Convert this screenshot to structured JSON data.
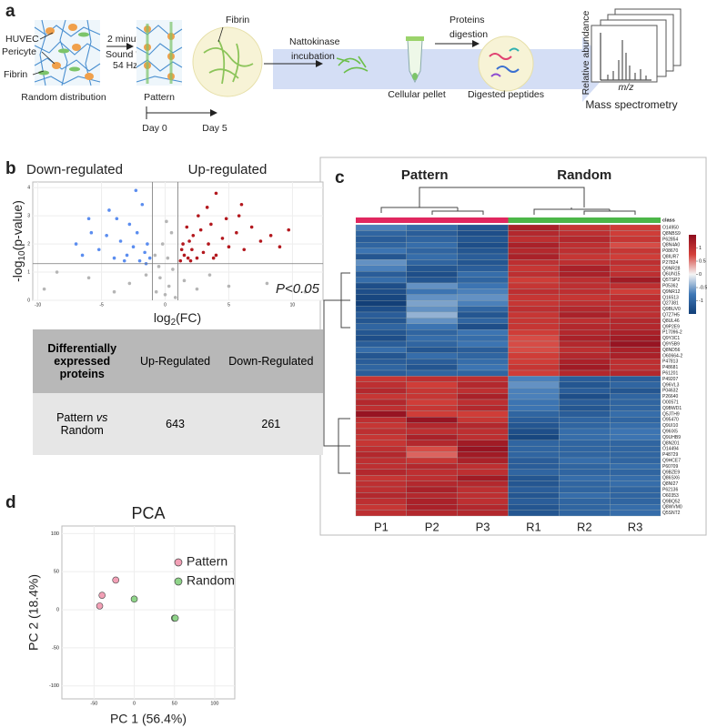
{
  "figure": {
    "panel_a": {
      "letter": "a",
      "huvec": "HUVEC",
      "pericyte": "Pericyte",
      "fibrin": "Fibrin",
      "random_distribution": "Random distribution",
      "duration": "2 minutes",
      "sound": "Sound 'on'",
      "frequency": "54 Hz",
      "pattern": "Pattern",
      "day_0": "Day 0",
      "day_5": "Day 5",
      "fibrin_2": "Fibrin",
      "nattokinase": "Nattokinase",
      "incubation": "incubation",
      "proteins": "Proteins",
      "digestion": "digestion",
      "cellular_pellet": "Cellular pellet",
      "digested_peptides": "Digested peptides",
      "relative_abundance": "Relative abundance",
      "mz": "m/z",
      "mass_spectrometry": "Mass spectrometry"
    },
    "panel_b": {
      "letter": "b"
    },
    "panel_c": {
      "letter": "c"
    },
    "panel_d": {
      "letter": "d"
    },
    "table": {
      "header": [
        "Differentially expressed proteins",
        "Up-Regulated",
        "Down-Regulated"
      ],
      "row": {
        "label_start": "Pattern",
        "label_em": "vs",
        "label_end": "Random",
        "values": [
          "643",
          "261"
        ]
      }
    }
  },
  "chart_data": [
    {
      "type": "scatter",
      "annotations": {
        "down": "Down-regulated",
        "up": "Up-regulated",
        "significance": "P<0.05"
      },
      "x_label": {
        "text": "log",
        "sub": "2",
        "tail": "(FC)"
      },
      "y_label": {
        "text": "-log",
        "sub": "10",
        "tail": "(p-value)"
      },
      "xlim": [
        -10.4,
        12.4
      ],
      "ylim": [
        0,
        4.2
      ],
      "xticks": [
        -10,
        -5,
        0,
        5,
        10
      ],
      "yticks": [
        0,
        1,
        2,
        3,
        4
      ],
      "grid": true,
      "reference_lines": {
        "x": [
          -1,
          1
        ],
        "y": [
          1.3
        ]
      },
      "series": [
        {
          "color": "#b5b5b5",
          "x": [
            0,
            0.3,
            -0.4,
            0.6,
            -0.7,
            0.2,
            -0.2,
            0.5,
            -0.5,
            1.5,
            -1.5,
            2.5,
            -2.8,
            3.5,
            -4,
            5,
            -6,
            -8.5,
            8,
            0.1,
            -0.8,
            0.8,
            -9.5,
            11
          ],
          "values": [
            0.2,
            0.5,
            0.8,
            1.1,
            0.3,
            1.5,
            2.0,
            2.4,
            1.2,
            0.7,
            0.9,
            0.4,
            0.6,
            0.9,
            0.3,
            0.5,
            0.8,
            1.0,
            0.6,
            2.8,
            1.6,
            0.1,
            0.4,
            0.3
          ]
        },
        {
          "color": "#5b8def",
          "x": [
            -1.2,
            -1.6,
            -2.0,
            -1.4,
            -2.5,
            -3.0,
            -2.2,
            -3.5,
            -4.0,
            -2.8,
            -4.6,
            -3.8,
            -5.2,
            -5.8,
            -6.5,
            -4.4,
            -7.0,
            -1.8,
            -2.3,
            -6.0,
            -1.5,
            -3.2
          ],
          "values": [
            1.5,
            1.7,
            1.4,
            2.0,
            1.9,
            1.6,
            2.4,
            2.1,
            1.5,
            2.7,
            2.3,
            2.9,
            1.8,
            2.4,
            1.6,
            3.2,
            2.0,
            3.4,
            3.9,
            2.9,
            1.3,
            1.4
          ]
        },
        {
          "color": "#b3181e",
          "x": [
            1.2,
            1.5,
            1.8,
            2.1,
            1.4,
            2.5,
            3.0,
            2.2,
            1.7,
            3.4,
            2.8,
            4.0,
            3.6,
            4.5,
            2.6,
            5.0,
            4.8,
            5.6,
            6.2,
            3.3,
            6.8,
            7.5,
            8.3,
            9.0,
            5.8,
            4.0,
            9.7,
            6.0,
            1.3,
            2.0,
            3.8,
            1.9
          ],
          "values": [
            1.4,
            1.6,
            1.5,
            1.8,
            2.0,
            1.5,
            1.7,
            2.3,
            2.6,
            2.0,
            2.5,
            1.6,
            2.7,
            2.2,
            3.0,
            1.9,
            2.9,
            2.4,
            1.8,
            3.3,
            2.6,
            2.1,
            2.3,
            1.9,
            3.0,
            3.8,
            2.5,
            3.4,
            1.8,
            1.4,
            1.5,
            2.1
          ]
        }
      ]
    },
    {
      "type": "heatmap",
      "groups": [
        {
          "name": "Pattern",
          "color": "#e0275f",
          "columns": [
            "P1",
            "P2",
            "P3"
          ]
        },
        {
          "name": "Random",
          "color": "#4cb648",
          "columns": [
            "R1",
            "R2",
            "R3"
          ]
        }
      ],
      "class_label": "class",
      "color_range": [
        -1.5,
        1.5
      ],
      "colors": [
        "#123f78",
        "#3f78b6",
        "#f5f5f5",
        "#d4403a",
        "#8e0d1e"
      ],
      "colorbar_ticks": [
        1,
        0.5,
        0,
        -0.5,
        -1
      ],
      "rows": [
        "O14950",
        "Q8NBS9",
        "P62854",
        "Q8N4A0",
        "P08670",
        "Q8IUR7",
        "P27824",
        "Q9NR28",
        "Q6UN15",
        "Q5TSP2",
        "P05362",
        "Q9NR12",
        "Q16513",
        "Q27381",
        "Q9BUV0",
        "Q7Z7H5",
        "Q8UL46",
        "Q9P2E9",
        "P17096-2",
        "Q9Y3C1",
        "Q9Y5B9",
        "Q8ND56",
        "O60664-2",
        "P47813",
        "P48681",
        "P61201",
        "P49207",
        "Q96VL3",
        "P04632",
        "P26640",
        "O00571",
        "Q9BWD1",
        "Q5JTH9",
        "O95470",
        "Q9UI10",
        "Q96IX5",
        "Q9UHB9",
        "Q8N201",
        "O14494",
        "P48729",
        "Q9HCE7",
        "P60709",
        "Q9BZE9",
        "Q86SX6",
        "Q8NI27",
        "P62136",
        "O60353",
        "Q9BQ52",
        "Q8WVM0",
        "Q5SNT2"
      ],
      "values": [
        [
          -0.7,
          -0.9,
          -1.2,
          1.2,
          0.9,
          0.8
        ],
        [
          -1.0,
          -1.1,
          -1.3,
          1.1,
          1.0,
          0.8
        ],
        [
          -1.1,
          -1.0,
          -1.2,
          1.0,
          1.1,
          0.9
        ],
        [
          -1.0,
          -0.9,
          -1.3,
          1.2,
          1.0,
          0.7
        ],
        [
          -0.8,
          -1.0,
          -1.2,
          1.1,
          1.0,
          0.9
        ],
        [
          -1.2,
          -0.9,
          -1.1,
          1.2,
          0.9,
          0.8
        ],
        [
          -0.6,
          -1.0,
          -1.2,
          1.0,
          1.0,
          1.0
        ],
        [
          -0.7,
          -1.2,
          -1.1,
          0.9,
          1.2,
          0.9
        ],
        [
          -1.1,
          -1.3,
          -0.9,
          1.0,
          1.2,
          1.0
        ],
        [
          -0.9,
          -1.2,
          -1.0,
          0.8,
          1.0,
          1.3
        ],
        [
          -1.3,
          -0.6,
          -0.8,
          0.9,
          1.0,
          1.0
        ],
        [
          -1.3,
          -0.8,
          -0.7,
          1.0,
          1.0,
          0.8
        ],
        [
          -1.4,
          -0.6,
          -0.6,
          0.9,
          0.9,
          1.0
        ],
        [
          -1.5,
          -0.5,
          -0.7,
          0.9,
          1.0,
          1.0
        ],
        [
          -1.3,
          -0.6,
          -1.0,
          1.0,
          1.1,
          1.0
        ],
        [
          -1.1,
          -0.4,
          -1.2,
          0.9,
          1.2,
          1.0
        ],
        [
          -1.2,
          -0.6,
          -1.0,
          0.9,
          1.0,
          1.1
        ],
        [
          -1.0,
          -0.8,
          -1.3,
          0.9,
          1.1,
          1.1
        ],
        [
          -1.2,
          -1.0,
          -0.8,
          0.8,
          1.1,
          1.2
        ],
        [
          -1.3,
          -0.9,
          -0.9,
          0.7,
          1.2,
          1.3
        ],
        [
          -1.1,
          -1.0,
          -0.8,
          0.7,
          1.1,
          1.4
        ],
        [
          -0.9,
          -1.2,
          -1.1,
          0.7,
          1.0,
          1.2
        ],
        [
          -1.2,
          -0.9,
          -1.0,
          0.8,
          1.1,
          1.2
        ],
        [
          -1.1,
          -1.1,
          -0.9,
          0.8,
          1.2,
          1.0
        ],
        [
          -1.0,
          -1.2,
          -0.8,
          0.9,
          1.3,
          1.0
        ],
        [
          -1.1,
          -1.0,
          -1.0,
          0.8,
          1.1,
          1.1
        ],
        [
          0.9,
          1.0,
          1.0,
          -0.7,
          -1.1,
          -1.1
        ],
        [
          1.0,
          0.8,
          1.1,
          -0.6,
          -1.2,
          -1.0
        ],
        [
          1.1,
          0.9,
          1.0,
          -0.7,
          -1.1,
          -1.2
        ],
        [
          0.9,
          0.9,
          1.2,
          -0.7,
          -1.3,
          -1.0
        ],
        [
          1.1,
          0.8,
          1.0,
          -0.8,
          -1.1,
          -1.0
        ],
        [
          1.0,
          0.9,
          1.1,
          -0.8,
          -1.2,
          -1.0
        ],
        [
          1.4,
          0.8,
          0.8,
          -1.0,
          -1.1,
          -0.9
        ],
        [
          1.0,
          1.4,
          0.9,
          -1.1,
          -1.0,
          -1.0
        ],
        [
          0.9,
          1.1,
          1.1,
          -1.2,
          -1.0,
          -0.9
        ],
        [
          1.0,
          1.0,
          1.0,
          -1.3,
          -0.9,
          -0.8
        ],
        [
          0.9,
          1.2,
          1.0,
          -1.4,
          -0.9,
          -0.8
        ],
        [
          0.9,
          1.1,
          1.3,
          -1.0,
          -1.0,
          -1.0
        ],
        [
          1.0,
          0.7,
          1.4,
          -1.0,
          -1.0,
          -1.0
        ],
        [
          1.1,
          0.6,
          1.3,
          -1.0,
          -1.0,
          -1.0
        ],
        [
          1.0,
          0.9,
          1.2,
          -1.1,
          -0.9,
          -1.0
        ],
        [
          1.0,
          1.1,
          1.0,
          -1.1,
          -1.0,
          -0.9
        ],
        [
          1.1,
          1.0,
          1.0,
          -1.0,
          -1.0,
          -1.0
        ],
        [
          0.9,
          1.0,
          1.3,
          -1.2,
          -0.9,
          -0.9
        ],
        [
          1.0,
          1.1,
          1.1,
          -1.2,
          -1.0,
          -0.9
        ],
        [
          1.0,
          1.2,
          1.0,
          -1.1,
          -1.0,
          -1.0
        ],
        [
          1.1,
          1.1,
          1.0,
          -1.2,
          -0.9,
          -1.0
        ],
        [
          1.0,
          1.2,
          1.0,
          -1.1,
          -1.0,
          -1.0
        ],
        [
          0.9,
          1.2,
          1.1,
          -1.2,
          -1.0,
          -0.9
        ],
        [
          1.0,
          1.1,
          1.1,
          -1.2,
          -1.0,
          -0.9
        ]
      ]
    },
    {
      "type": "scatter",
      "title": "PCA",
      "x_label": "PC 1 (56.4%)",
      "y_label": "PC 2 (18.4%)",
      "xlim": [
        -90,
        125
      ],
      "ylim": [
        -117,
        110
      ],
      "xticks": [
        -50,
        0,
        50,
        100
      ],
      "yticks": [
        -100,
        -50,
        0,
        50,
        100
      ],
      "grid": true,
      "legend": "top-right",
      "series": [
        {
          "name": "Pattern",
          "color": "#f2a0b6",
          "x": [
            -23,
            -40,
            -43
          ],
          "values": [
            39,
            19,
            5
          ]
        },
        {
          "name": "Random",
          "color": "#8fd489",
          "x": [
            0,
            50,
            51
          ],
          "values": [
            14,
            -11,
            -11
          ]
        }
      ]
    }
  ]
}
